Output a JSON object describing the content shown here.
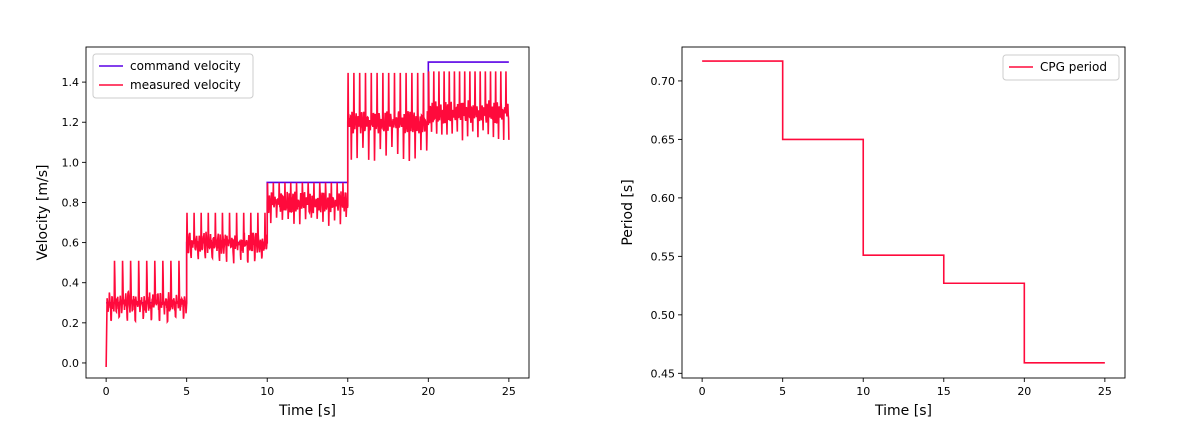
{
  "chart_data": [
    {
      "type": "line",
      "xlabel": "Time [s]",
      "ylabel": "Velocity [m/s]",
      "xlim": [
        -1.25,
        26.25
      ],
      "ylim": [
        -0.075,
        1.575
      ],
      "xticks": [
        0,
        5,
        10,
        15,
        20,
        25
      ],
      "yticks": [
        0.0,
        0.2,
        0.4,
        0.6,
        0.8,
        1.0,
        1.2,
        1.4
      ],
      "ytick_labels": [
        "0.0",
        "0.2",
        "0.4",
        "0.6",
        "0.8",
        "1.0",
        "1.2",
        "1.4"
      ],
      "grid": false,
      "legend_position": "upper-left",
      "series": [
        {
          "name": "command velocity",
          "color": "#5a00e6",
          "style": "step",
          "x": [
            0,
            5,
            5,
            10,
            10,
            15,
            15,
            20,
            20,
            25
          ],
          "y": [
            0.3,
            0.3,
            0.6,
            0.6,
            0.9,
            0.9,
            1.2,
            1.2,
            1.5,
            1.5
          ]
        },
        {
          "name": "measured velocity",
          "color": "#ff0a3c",
          "style": "noisy-line",
          "segments": [
            {
              "t0": 0,
              "t1": 5,
              "level": 0.3,
              "spike_to": 0.52,
              "dip_to": 0.18,
              "period": 0.5
            },
            {
              "t0": 5,
              "t1": 10,
              "level": 0.6,
              "spike_to": 0.75,
              "dip_to": 0.48,
              "period": 0.44
            },
            {
              "t0": 10,
              "t1": 15,
              "level": 0.8,
              "spike_to": 0.9,
              "dip_to": 0.68,
              "period": 0.36
            },
            {
              "t0": 15,
              "t1": 20,
              "level": 1.2,
              "spike_to": 1.45,
              "dip_to": 1.0,
              "period": 0.36
            },
            {
              "t0": 20,
              "t1": 25,
              "level": 1.25,
              "spike_to": 1.47,
              "dip_to": 1.1,
              "period": 0.32
            }
          ],
          "start_value": -0.02
        }
      ]
    },
    {
      "type": "line",
      "xlabel": "Time [s]",
      "ylabel": "Period [s]",
      "xlim": [
        -1.25,
        26.25
      ],
      "ylim": [
        0.446,
        0.729
      ],
      "xticks": [
        0,
        5,
        10,
        15,
        20,
        25
      ],
      "yticks": [
        0.45,
        0.5,
        0.55,
        0.6,
        0.65,
        0.7
      ],
      "ytick_labels": [
        "0.45",
        "0.50",
        "0.55",
        "0.60",
        "0.65",
        "0.70"
      ],
      "grid": false,
      "legend_position": "upper-right",
      "series": [
        {
          "name": "CPG period",
          "color": "#ff0a3c",
          "style": "step",
          "x": [
            0,
            5,
            5,
            10,
            10,
            15,
            15,
            20,
            20,
            25
          ],
          "y": [
            0.717,
            0.717,
            0.65,
            0.65,
            0.551,
            0.551,
            0.527,
            0.527,
            0.459,
            0.459
          ]
        }
      ]
    }
  ]
}
